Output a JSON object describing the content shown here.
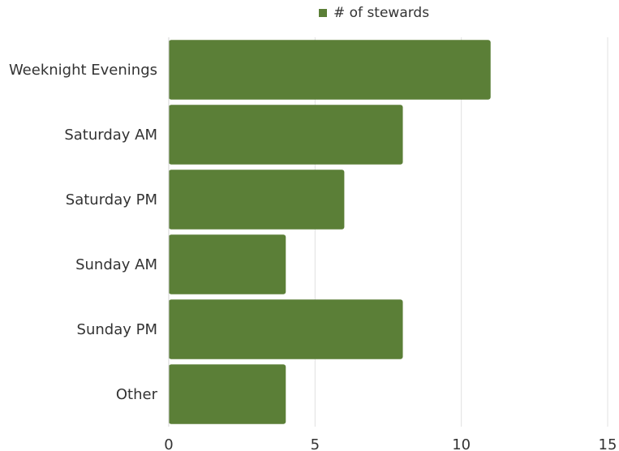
{
  "chart_data": {
    "type": "bar",
    "orientation": "horizontal",
    "categories": [
      "Weeknight Evenings",
      "Saturday AM",
      "Saturday PM",
      "Sunday AM",
      "Sunday PM",
      "Other"
    ],
    "series": [
      {
        "name": "# of stewards",
        "values": [
          11,
          8,
          6,
          4,
          8,
          4
        ]
      }
    ],
    "xlim": [
      0,
      15
    ],
    "x_ticks": [
      0,
      5,
      10,
      15
    ],
    "grid": "vertical",
    "legend": "top-center",
    "title": "",
    "xlabel": "",
    "ylabel": "",
    "bar_color": "#5b7f37",
    "grid_color": "#e0e0e0",
    "text_color": "#333333"
  }
}
